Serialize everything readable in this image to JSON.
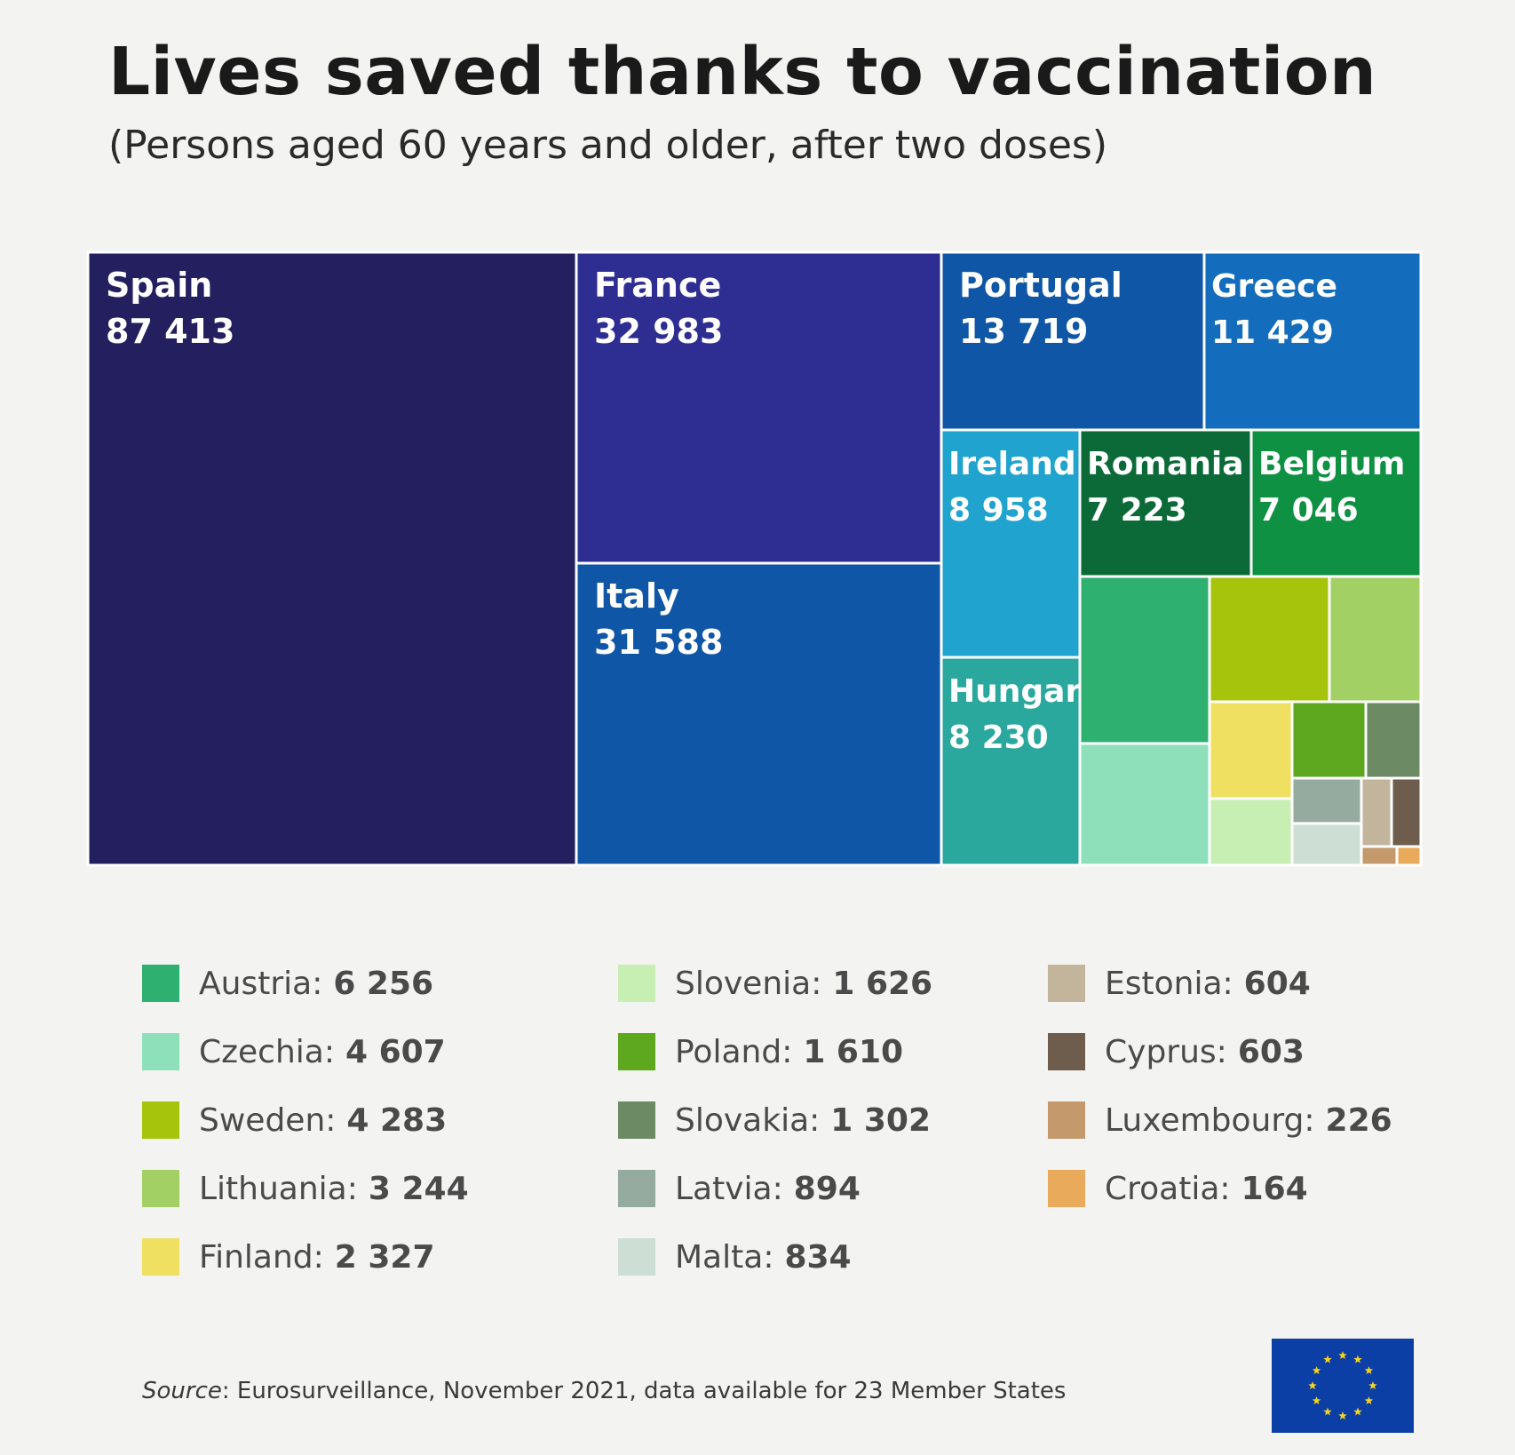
{
  "title": "Lives saved thanks to vaccination",
  "subtitle": "(Persons aged 60 years and older, after two doses)",
  "source": {
    "label": "Source",
    "text": ": Eurosurveillance, November 2021, data available for 23 Member States"
  },
  "chart_data": {
    "type": "treemap",
    "title": "Lives saved thanks to vaccination",
    "subtitle": "(Persons aged 60 years and older, after two doses)",
    "items": [
      {
        "name": "Spain",
        "value": 87413,
        "label": "87 413",
        "color": "#24205f",
        "labeled": true
      },
      {
        "name": "France",
        "value": 32983,
        "label": "32 983",
        "color": "#2e2d92",
        "labeled": true
      },
      {
        "name": "Italy",
        "value": 31588,
        "label": "31 588",
        "color": "#0f57a6",
        "labeled": true
      },
      {
        "name": "Portugal",
        "value": 13719,
        "label": "13 719",
        "color": "#0f57a6",
        "labeled": true
      },
      {
        "name": "Greece",
        "value": 11429,
        "label": "11 429",
        "color": "#136dbc",
        "labeled": true
      },
      {
        "name": "Ireland",
        "value": 8958,
        "label": "8 958",
        "color": "#21a3cf",
        "labeled": true
      },
      {
        "name": "Hungary",
        "value": 8230,
        "label": "8 230",
        "color": "#2aa89e",
        "labeled": true
      },
      {
        "name": "Romania",
        "value": 7223,
        "label": "7 223",
        "color": "#0b6a38",
        "labeled": true
      },
      {
        "name": "Belgium",
        "value": 7046,
        "label": "7 046",
        "color": "#0f9143",
        "labeled": true
      },
      {
        "name": "Austria",
        "value": 6256,
        "label": "6 256",
        "color": "#2db070",
        "labeled": false
      },
      {
        "name": "Czechia",
        "value": 4607,
        "label": "4 607",
        "color": "#8ee0bb",
        "labeled": false
      },
      {
        "name": "Sweden",
        "value": 4283,
        "label": "4 283",
        "color": "#a7c40c",
        "labeled": false
      },
      {
        "name": "Lithuania",
        "value": 3244,
        "label": "3 244",
        "color": "#a3d064",
        "labeled": false
      },
      {
        "name": "Finland",
        "value": 2327,
        "label": "2 327",
        "color": "#f0e062",
        "labeled": false
      },
      {
        "name": "Slovenia",
        "value": 1626,
        "label": "1 626",
        "color": "#c7eeb3",
        "labeled": false
      },
      {
        "name": "Poland",
        "value": 1610,
        "label": "1 610",
        "color": "#5ea820",
        "labeled": false
      },
      {
        "name": "Slovakia",
        "value": 1302,
        "label": "1 302",
        "color": "#6c8a63",
        "labeled": false
      },
      {
        "name": "Latvia",
        "value": 894,
        "label": "894",
        "color": "#95ab9f",
        "labeled": false
      },
      {
        "name": "Malta",
        "value": 834,
        "label": "834",
        "color": "#cddfd4",
        "labeled": false
      },
      {
        "name": "Estonia",
        "value": 604,
        "label": "604",
        "color": "#c2b59b",
        "labeled": false
      },
      {
        "name": "Cyprus",
        "value": 603,
        "label": "603",
        "color": "#6e5d4c",
        "labeled": false
      },
      {
        "name": "Luxembourg",
        "value": 226,
        "label": "226",
        "color": "#c49a6c",
        "labeled": false
      },
      {
        "name": "Croatia",
        "value": 164,
        "label": "164",
        "color": "#e9aa5c",
        "labeled": false
      }
    ],
    "legend": {
      "columns": [
        [
          "Austria",
          "Czechia",
          "Sweden",
          "Lithuania",
          "Finland"
        ],
        [
          "Slovenia",
          "Poland",
          "Slovakia",
          "Latvia",
          "Malta"
        ],
        [
          "Estonia",
          "Cyprus",
          "Luxembourg",
          "Croatia"
        ]
      ]
    }
  }
}
